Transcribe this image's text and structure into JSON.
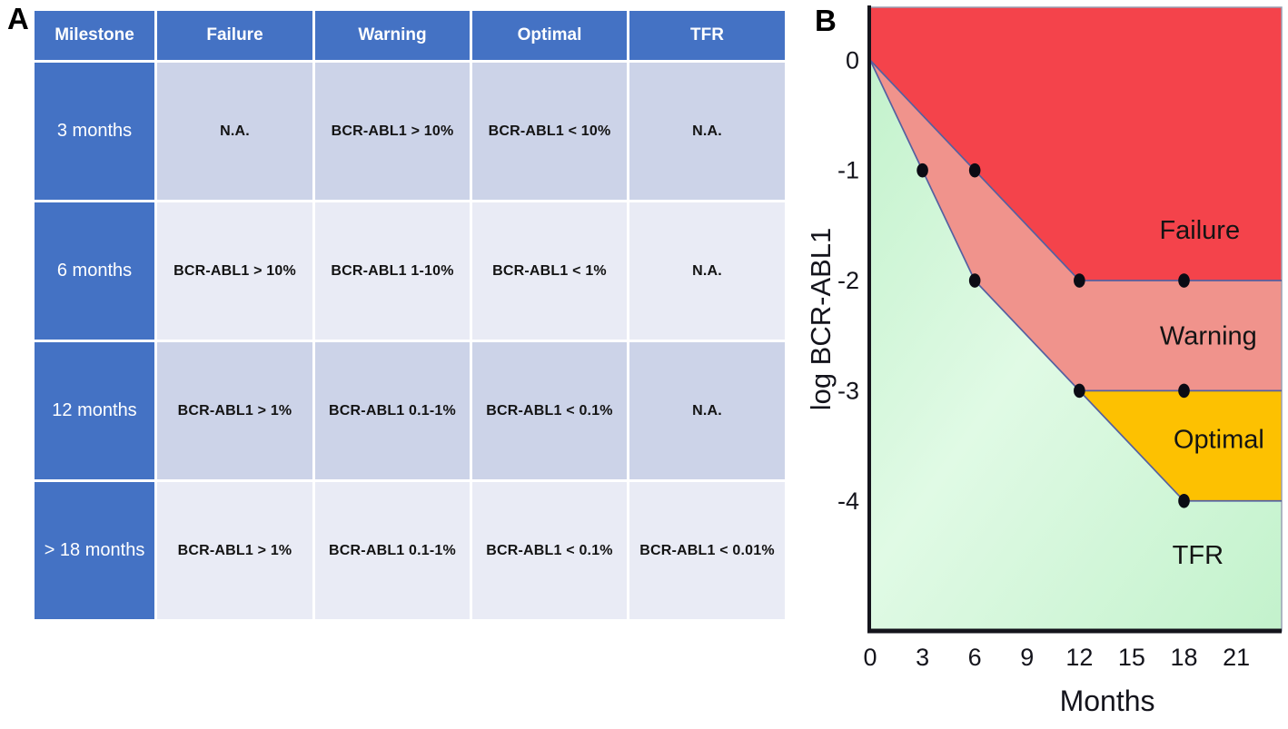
{
  "figure": {
    "panel_a_label": "A",
    "panel_b_label": "B"
  },
  "table": {
    "columns": [
      "Milestone",
      "Failure",
      "Warning",
      "Optimal",
      "TFR"
    ],
    "rows": [
      {
        "milestone": "3 months",
        "cells": [
          "N.A.",
          "BCR-ABL1 > 10%",
          "BCR-ABL1 < 10%",
          "N.A."
        ]
      },
      {
        "milestone": "6 months",
        "cells": [
          "BCR-ABL1 > 10%",
          "BCR-ABL1 1-10%",
          "BCR-ABL1 < 1%",
          "N.A."
        ]
      },
      {
        "milestone": "12 months",
        "cells": [
          "BCR-ABL1 > 1%",
          "BCR-ABL1 0.1-1%",
          "BCR-ABL1 < 0.1%",
          "N.A."
        ]
      },
      {
        "milestone": "> 18 months",
        "cells": [
          "BCR-ABL1 > 1%",
          "BCR-ABL1 0.1-1%",
          "BCR-ABL1 < 0.1%",
          "BCR-ABL1 < 0.01%"
        ]
      }
    ],
    "colors": {
      "header_bg": "#4472c4",
      "header_text": "#ffffff",
      "band_dark": "#ccd3e8",
      "band_light": "#e9ebf5",
      "cell_text": "#131313"
    }
  },
  "chart_data": {
    "type": "area",
    "title": "",
    "xlabel": "Months",
    "ylabel": "log BCR-ABL1",
    "x_ticks": [
      0,
      3,
      6,
      9,
      12,
      15,
      18,
      21
    ],
    "y_ticks": [
      0,
      -1,
      -2,
      -3,
      -4
    ],
    "xlim": [
      0,
      23.6
    ],
    "ylim": [
      -5.18,
      0.48
    ],
    "grid": false,
    "legend": "labels drawn inside colored regions",
    "regions": [
      {
        "name": "failure",
        "label": "Failure",
        "color": "#f4434b",
        "label_x": 18.9,
        "label_y": -1.62
      },
      {
        "name": "warning",
        "label": "Warning",
        "color": "#f0938c",
        "label_x": 19.4,
        "label_y": -2.58
      },
      {
        "name": "optimal",
        "label": "Optimal",
        "color": "#fdc101",
        "label_x": 20.0,
        "label_y": -3.52
      },
      {
        "name": "tfr",
        "label": "TFR",
        "color": "#c3f2cc",
        "color2": "#e0fae5",
        "label_x": 18.8,
        "label_y": -4.57
      }
    ],
    "boundaries": {
      "failure_warning_line": [
        [
          0,
          0
        ],
        [
          12,
          -2
        ],
        [
          23.6,
          -2
        ]
      ],
      "warning_optimal_line": [
        [
          12,
          -3
        ],
        [
          23.6,
          -3
        ]
      ],
      "optimal_tfr_line": [
        [
          0,
          0
        ],
        [
          6,
          -2
        ],
        [
          12,
          -3
        ],
        [
          18,
          -4
        ],
        [
          23.6,
          -4
        ]
      ]
    },
    "milestone_points": [
      [
        3,
        -1
      ],
      [
        6,
        -1
      ],
      [
        6,
        -2
      ],
      [
        12,
        -2
      ],
      [
        18,
        -2
      ],
      [
        12,
        -3
      ],
      [
        18,
        -3
      ],
      [
        18,
        -4
      ]
    ],
    "line_color": "#5560a0",
    "border_color": "#98a0b4",
    "axis_color": "#14141c",
    "dot_color": "#0b0b14",
    "label_color": "#141414"
  }
}
